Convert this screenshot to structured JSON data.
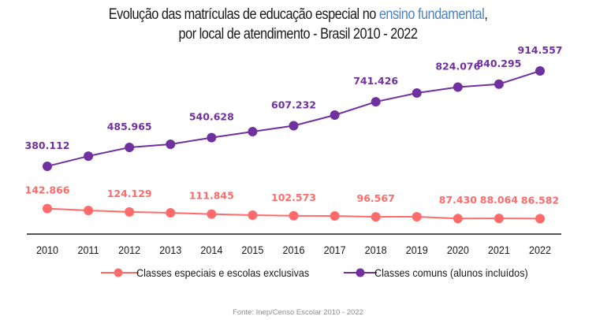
{
  "title": {
    "line1_prefix": "Evolução das matrículas de educação especial no ",
    "line1_highlight": "ensino fundamental",
    "line1_suffix": ",",
    "line2": "por local de atendimento  - Brasil 2010 - 2022",
    "highlight_color": "#4f81bd"
  },
  "source": "Fonte: Inep/Censo Escolar 2010 - 2022",
  "chart_data": {
    "type": "line",
    "title": "Evolução das matrículas de educação especial no ensino fundamental, por local de atendimento - Brasil 2010 - 2022",
    "xlabel": "",
    "ylabel": "",
    "x": [
      "2010",
      "2011",
      "2012",
      "2013",
      "2014",
      "2015",
      "2016",
      "2017",
      "2018",
      "2019",
      "2020",
      "2021",
      "2022"
    ],
    "ylim": [
      0,
      1312000
    ],
    "grid": false,
    "legend_position": "bottom",
    "series": [
      {
        "name": "Classes especiais e escolas exclusivas",
        "color": "#ff6b6b",
        "values": [
          142866,
          132500,
          124129,
          119300,
          111845,
          106000,
          102573,
          101600,
          96567,
          97200,
          87430,
          88064,
          86582
        ],
        "labels": [
          "142.866",
          null,
          "124.129",
          null,
          "111.845",
          null,
          "102.573",
          null,
          "96.567",
          null,
          "87.430",
          "88.064",
          "86.582"
        ]
      },
      {
        "name": "Classes comuns (alunos incluídos)",
        "color": "#7030a0",
        "values": [
          380112,
          437000,
          485965,
          503500,
          540628,
          574200,
          607232,
          667000,
          741426,
          790600,
          824076,
          840295,
          914557
        ],
        "labels": [
          "380.112",
          null,
          "485.965",
          null,
          "540.628",
          null,
          "607.232",
          null,
          "741.426",
          null,
          "824.076",
          "840.295",
          "914.557"
        ]
      }
    ]
  }
}
